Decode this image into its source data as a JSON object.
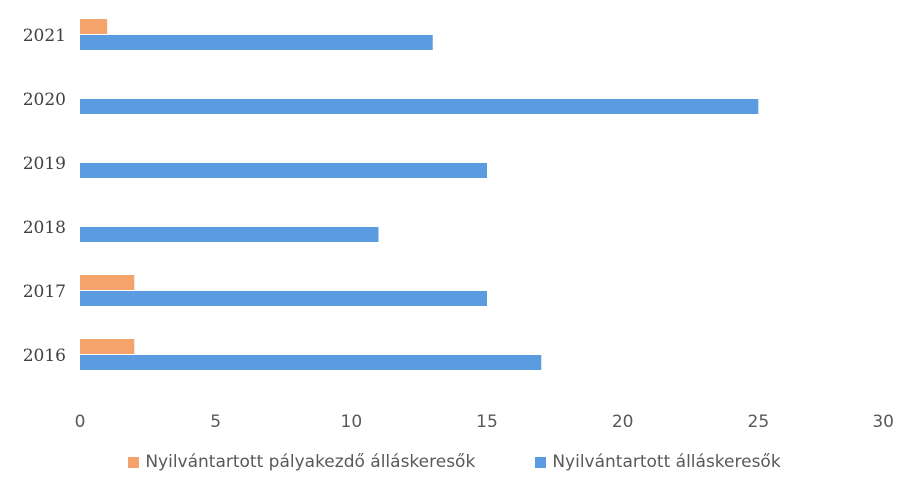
{
  "chart_data": {
    "type": "bar",
    "orientation": "horizontal",
    "categories": [
      "2016",
      "2017",
      "2018",
      "2019",
      "2020",
      "2021"
    ],
    "series": [
      {
        "name": "Nyilvántartott pályakezdő álláskeresők",
        "color": "#F4A46B",
        "values": [
          2,
          2,
          0,
          0,
          0,
          1
        ]
      },
      {
        "name": "Nyilvántartott álláskeresők",
        "color": "#5B9BE0",
        "values": [
          17,
          15,
          11,
          15,
          25,
          13
        ]
      }
    ],
    "xlim": [
      0,
      30
    ],
    "xticks": [
      "0",
      "5",
      "10",
      "15",
      "20",
      "25",
      "30"
    ],
    "grid": false,
    "legend_position": "bottom"
  }
}
